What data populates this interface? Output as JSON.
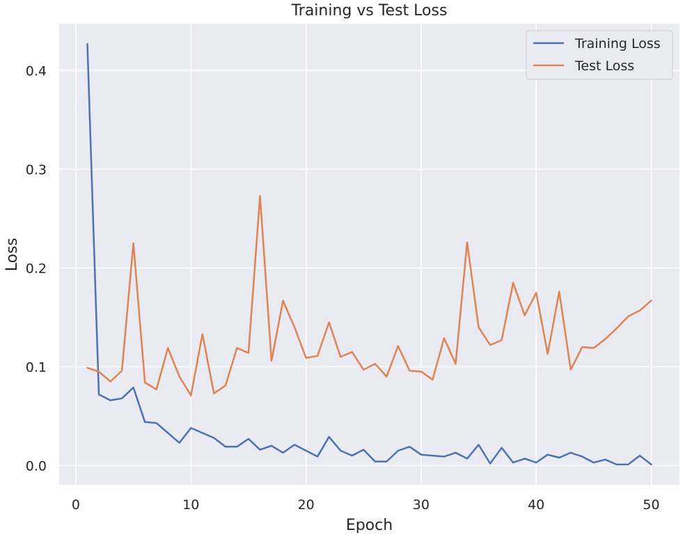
{
  "chart_data": {
    "type": "line",
    "title": "Training vs Test Loss",
    "xlabel": "Epoch",
    "ylabel": "Loss",
    "xlim": [
      -1.45,
      52.45
    ],
    "ylim": [
      -0.0195,
      0.4475
    ],
    "x_ticks": [
      0,
      10,
      20,
      30,
      40,
      50
    ],
    "x_tick_labels": [
      "0",
      "10",
      "20",
      "30",
      "40",
      "50"
    ],
    "y_ticks": [
      0.0,
      0.1,
      0.2,
      0.3,
      0.4
    ],
    "y_tick_labels": [
      "0.0",
      "0.1",
      "0.2",
      "0.3",
      "0.4"
    ],
    "grid": true,
    "legend_position": "top-right",
    "x": [
      1,
      2,
      3,
      4,
      5,
      6,
      7,
      8,
      9,
      10,
      11,
      12,
      13,
      14,
      15,
      16,
      17,
      18,
      19,
      20,
      21,
      22,
      23,
      24,
      25,
      26,
      27,
      28,
      29,
      30,
      31,
      32,
      33,
      34,
      35,
      36,
      37,
      38,
      39,
      40,
      41,
      42,
      43,
      44,
      45,
      46,
      47,
      48,
      49,
      50
    ],
    "series": [
      {
        "name": "Training Loss",
        "color": "#4c72b0",
        "values": [
          0.427,
          0.072,
          0.066,
          0.068,
          0.079,
          0.044,
          0.043,
          0.033,
          0.023,
          0.038,
          0.033,
          0.028,
          0.019,
          0.019,
          0.027,
          0.016,
          0.02,
          0.013,
          0.021,
          0.015,
          0.009,
          0.029,
          0.015,
          0.01,
          0.016,
          0.004,
          0.004,
          0.015,
          0.019,
          0.011,
          0.01,
          0.009,
          0.013,
          0.007,
          0.021,
          0.002,
          0.018,
          0.003,
          0.007,
          0.003,
          0.011,
          0.008,
          0.013,
          0.009,
          0.003,
          0.006,
          0.001,
          0.001,
          0.01,
          0.001
        ]
      },
      {
        "name": "Test Loss",
        "color": "#dd8452",
        "values": [
          0.099,
          0.095,
          0.085,
          0.096,
          0.225,
          0.084,
          0.077,
          0.119,
          0.09,
          0.071,
          0.133,
          0.073,
          0.081,
          0.119,
          0.114,
          0.273,
          0.106,
          0.167,
          0.14,
          0.109,
          0.111,
          0.145,
          0.11,
          0.115,
          0.097,
          0.103,
          0.09,
          0.121,
          0.096,
          0.095,
          0.087,
          0.129,
          0.103,
          0.226,
          0.14,
          0.122,
          0.127,
          0.185,
          0.152,
          0.175,
          0.113,
          0.176,
          0.097,
          0.12,
          0.119,
          0.128,
          0.139,
          0.151,
          0.157,
          0.167
        ]
      }
    ]
  }
}
